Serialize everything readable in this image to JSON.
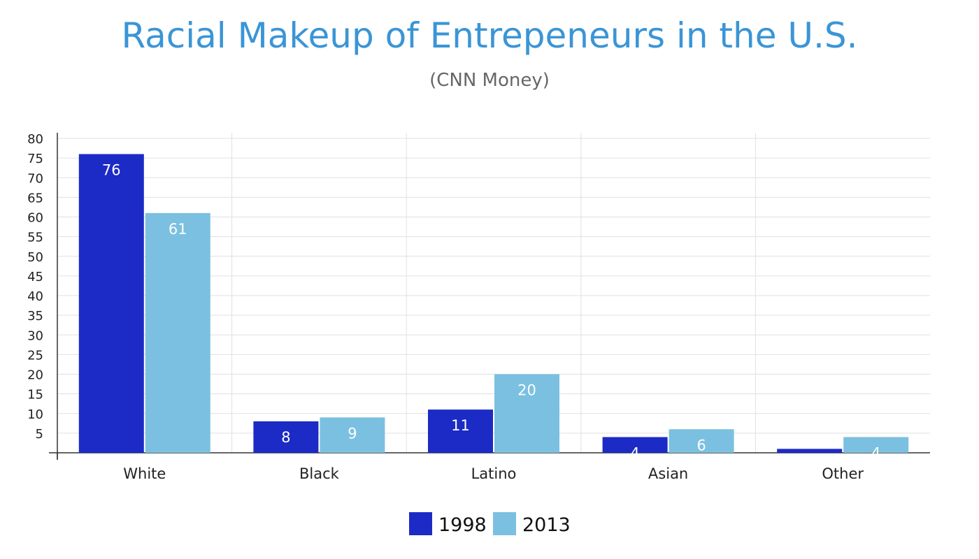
{
  "chart_data": {
    "type": "bar",
    "title": "Racial Makeup of Entrepeneurs in the U.S.",
    "subtitle": "(CNN Money)",
    "xlabel": "",
    "ylabel": "",
    "categories": [
      "White",
      "Black",
      "Latino",
      "Asian",
      "Other"
    ],
    "series": [
      {
        "name": "1998",
        "values": [
          76,
          8,
          11,
          4,
          1
        ],
        "color": "#1c2bc5",
        "labels": [
          "76",
          "8",
          "11",
          "4",
          ""
        ]
      },
      {
        "name": "2013",
        "values": [
          61,
          9,
          20,
          6,
          4
        ],
        "color": "#7bc0e0",
        "labels": [
          "61",
          "9",
          "20",
          "6",
          "4"
        ]
      }
    ],
    "ylim": [
      0,
      80
    ],
    "yticks": [
      5,
      10,
      15,
      20,
      25,
      30,
      35,
      40,
      45,
      50,
      55,
      60,
      65,
      70,
      75,
      80
    ],
    "grid": true,
    "legend": "bottom-center"
  }
}
